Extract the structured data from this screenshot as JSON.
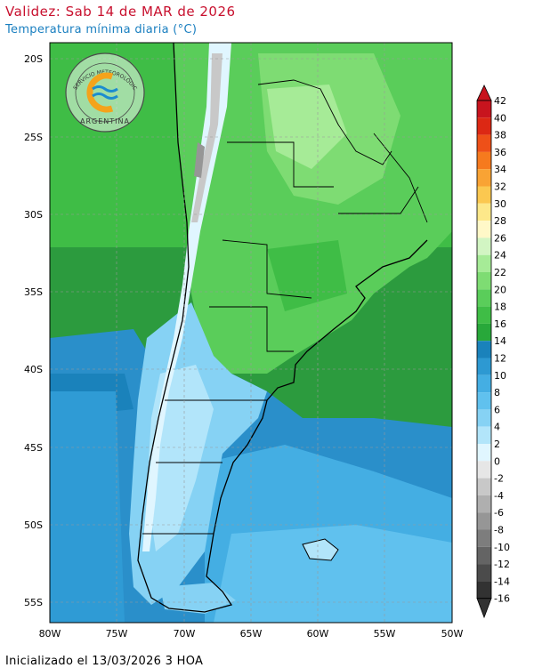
{
  "header": {
    "validity": "Validez: Sab 14 de MAR de 2026",
    "variable": "Temperatura mínima diaria (°C)"
  },
  "footer": {
    "initialized": "Inicializado el 13/03/2026 3 HOA"
  },
  "logo": {
    "arc_text": "SERVICIO METEOROLÓGICO NACIONAL",
    "country": "ARGENTINA"
  },
  "map": {
    "region": "Argentina",
    "lat_labels": [
      "20S",
      "25S",
      "30S",
      "35S",
      "40S",
      "45S",
      "50S",
      "55S"
    ],
    "lon_labels": [
      "80W",
      "75W",
      "70W",
      "65W",
      "60W",
      "55W",
      "50W"
    ]
  },
  "colorbar": {
    "unit": "°C",
    "levels": [
      42,
      40,
      38,
      36,
      34,
      32,
      30,
      28,
      26,
      24,
      22,
      20,
      18,
      16,
      14,
      12,
      10,
      8,
      6,
      4,
      2,
      0,
      -2,
      -4,
      -6,
      -8,
      -10,
      -12,
      -14,
      -16
    ],
    "colors": {
      "gt_40": "#c8141e",
      "38_40": "#dc2814",
      "36_38": "#ee5018",
      "34_36": "#f67a1e",
      "32_34": "#f9a334",
      "30_32": "#fbc850",
      "28_30": "#fde88a",
      "26_28": "#fff8c8",
      "24_26": "#d2f5c3",
      "22_24": "#a6eb97",
      "20_22": "#7edc73",
      "18_20": "#5acd5a",
      "16_18": "#3fbd46",
      "14_16": "#28a83a",
      "12_14": "#1a82bb",
      "10_12": "#2d99d2",
      "8_10": "#44aee3",
      "6_8": "#60c1ee",
      "4_6": "#86d2f4",
      "2_4": "#b2e5fa",
      "0_2": "#e0f6ff",
      "-2_0": "#e6e6e6",
      "-4_-2": "#c8c8c8",
      "-6_-4": "#afafaf",
      "-8_-6": "#969696",
      "-10_-8": "#7d7d7d",
      "-12_-10": "#646464",
      "-14_-12": "#4b4b4b",
      "lt_-14": "#323232"
    }
  }
}
